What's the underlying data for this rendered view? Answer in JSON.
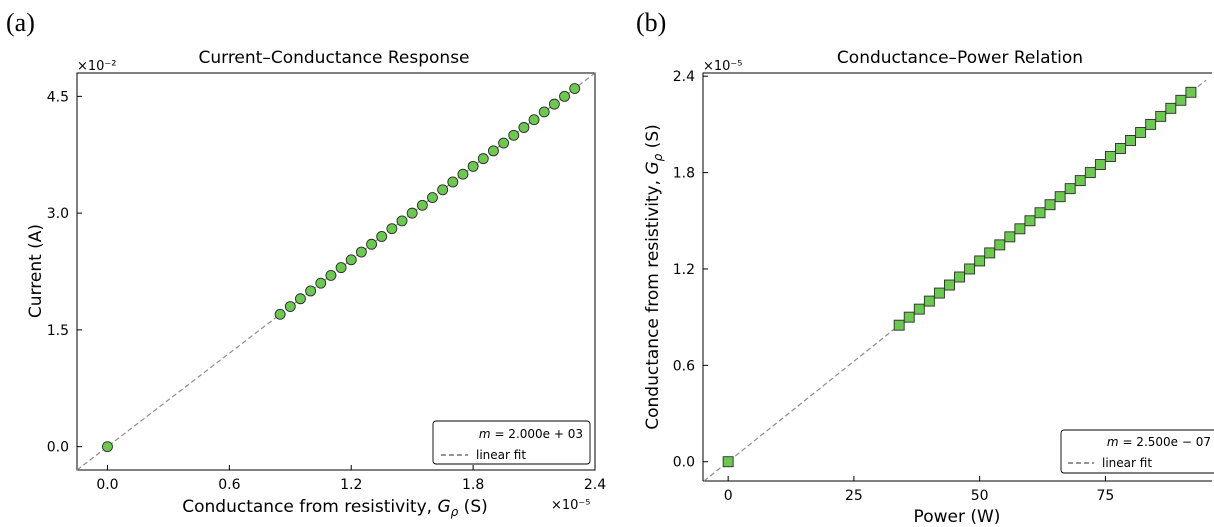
{
  "panels": [
    {
      "tag": "(a)"
    },
    {
      "tag": "(b)"
    }
  ],
  "colors": {
    "marker_fill": "#6cc94f",
    "marker_edge": "#2b2b2b",
    "fit_line": "#8c8c8c",
    "axis": "#000000"
  },
  "chart_data": [
    {
      "type": "scatter",
      "title": "Current–Conductance Response",
      "xlabel": "Conductance from resistivity, ",
      "xlabel_symbol": "G",
      "xlabel_sub": "ρ",
      "xlabel_unit": " (S)",
      "ylabel": "Current (A)",
      "x_multiplier": "×10⁻⁵",
      "y_multiplier": "×10⁻²",
      "xlim": [
        -0.15,
        2.4
      ],
      "ylim": [
        -0.3,
        4.8
      ],
      "xticks": [
        0.0,
        0.6,
        1.2,
        1.8,
        2.4
      ],
      "xtick_labels": [
        "0.0",
        "0.6",
        "1.2",
        "1.8",
        "2.4"
      ],
      "yticks": [
        0.0,
        1.5,
        3.0,
        4.5
      ],
      "ytick_labels": [
        "0.0",
        "1.5",
        "3.0",
        "4.5"
      ],
      "marker": "circle",
      "fit": {
        "slope": 2.0,
        "intercept": 0.0
      },
      "legend": {
        "placement": "lower-right",
        "fit_label": "linear fit",
        "m_label": "m",
        "m_value": " = 2.000e + 03"
      },
      "x": [
        0.0,
        0.85,
        0.9,
        0.95,
        1.0,
        1.05,
        1.1,
        1.15,
        1.2,
        1.25,
        1.3,
        1.35,
        1.4,
        1.45,
        1.5,
        1.55,
        1.6,
        1.65,
        1.7,
        1.75,
        1.8,
        1.85,
        1.9,
        1.95,
        2.0,
        2.05,
        2.1,
        2.15,
        2.2,
        2.25,
        2.3
      ],
      "y": [
        0.0,
        1.7,
        1.8,
        1.9,
        2.0,
        2.1,
        2.2,
        2.3,
        2.4,
        2.5,
        2.6,
        2.7,
        2.8,
        2.9,
        3.0,
        3.1,
        3.2,
        3.3,
        3.4,
        3.5,
        3.6,
        3.7,
        3.8,
        3.9,
        4.0,
        4.1,
        4.2,
        4.3,
        4.4,
        4.5,
        4.6
      ]
    },
    {
      "type": "scatter",
      "title": "Conductance–Power Relation",
      "xlabel": "Power (W)",
      "ylabel": "Conductance from resistivity, ",
      "ylabel_symbol": "G",
      "ylabel_sub": "ρ",
      "ylabel_unit": " (S)",
      "y_multiplier": "×10⁻⁵",
      "xlim": [
        -5,
        95
      ],
      "ylim": [
        -0.12,
        2.42
      ],
      "xticks": [
        0,
        25,
        50,
        75
      ],
      "xtick_labels": [
        "0",
        "25",
        "50",
        "75"
      ],
      "yticks": [
        0.0,
        0.6,
        1.2,
        1.8,
        2.4
      ],
      "ytick_labels": [
        "0.0",
        "0.6",
        "1.2",
        "1.8",
        "2.4"
      ],
      "marker": "square",
      "fit": {
        "slope": 0.025,
        "intercept": 0.0
      },
      "legend": {
        "placement": "lower-right",
        "fit_label": "linear fit",
        "m_label": "m",
        "m_value": " = 2.500e − 07"
      },
      "x": [
        0,
        34,
        36,
        38,
        40,
        42,
        44,
        46,
        48,
        50,
        52,
        54,
        56,
        58,
        60,
        62,
        64,
        66,
        68,
        70,
        72,
        74,
        76,
        78,
        80,
        82,
        84,
        86,
        88,
        90,
        92
      ],
      "y": [
        0.0,
        0.85,
        0.9,
        0.95,
        1.0,
        1.05,
        1.1,
        1.15,
        1.2,
        1.25,
        1.3,
        1.35,
        1.4,
        1.45,
        1.5,
        1.55,
        1.6,
        1.65,
        1.7,
        1.75,
        1.8,
        1.85,
        1.9,
        1.95,
        2.0,
        2.05,
        2.1,
        2.15,
        2.2,
        2.25,
        2.3
      ]
    }
  ]
}
